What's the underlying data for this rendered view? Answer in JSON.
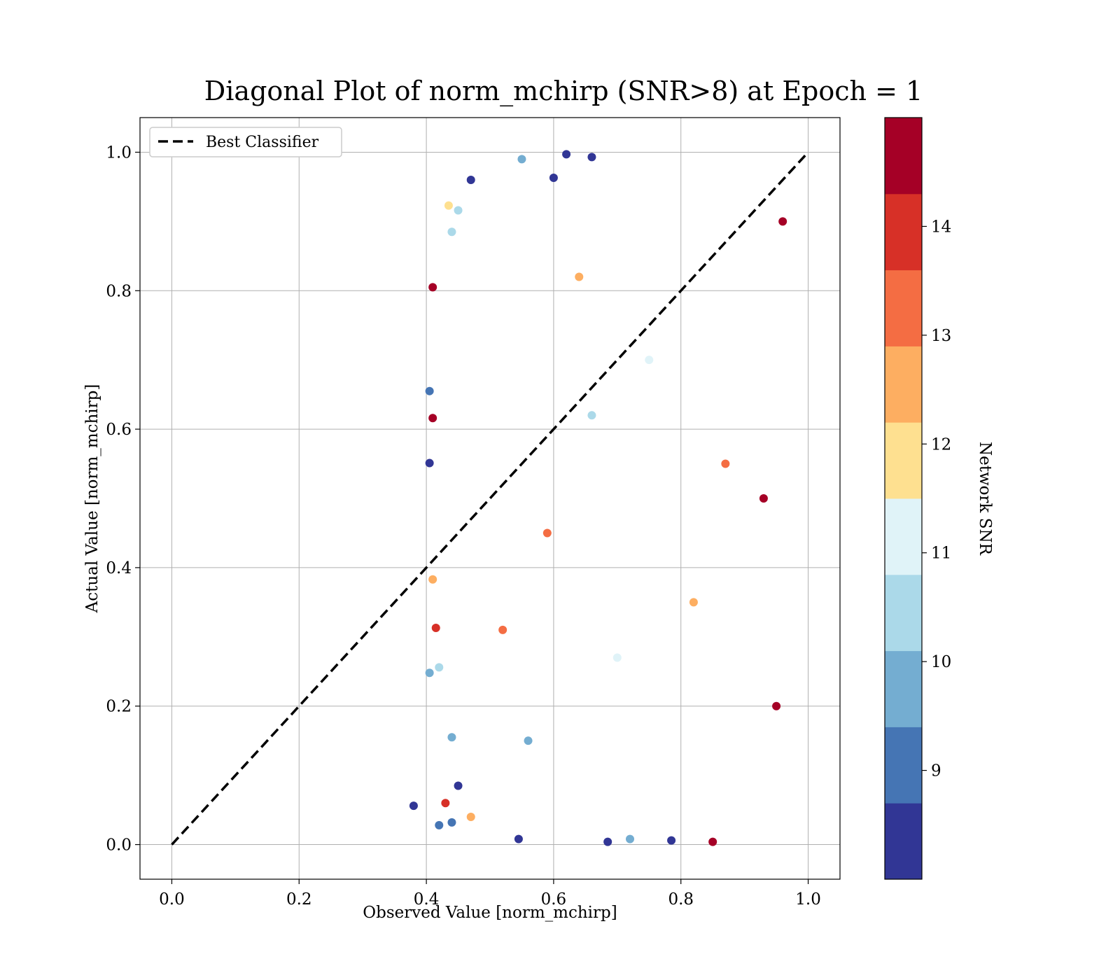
{
  "chart_data": {
    "type": "scatter",
    "title": "Diagonal Plot of norm_mchirp (SNR>8) at Epoch = 1",
    "xlabel": "Observed Value [norm_mchirp]",
    "ylabel": "Actual Value [norm_mchirp]",
    "xlim": [
      -0.05,
      1.05
    ],
    "ylim": [
      -0.05,
      1.05
    ],
    "xticks": [
      0.0,
      0.2,
      0.4,
      0.6,
      0.8,
      1.0
    ],
    "yticks": [
      0.0,
      0.2,
      0.4,
      0.6,
      0.8,
      1.0
    ],
    "xtick_labels": [
      "0.0",
      "0.2",
      "0.4",
      "0.6",
      "0.8",
      "1.0"
    ],
    "ytick_labels": [
      "0.0",
      "0.2",
      "0.4",
      "0.6",
      "0.8",
      "1.0"
    ],
    "grid": true,
    "legend": {
      "placement": "top-left",
      "entries": [
        "Best Classifier"
      ]
    },
    "reference_line": {
      "name": "Best Classifier",
      "x": [
        0.0,
        1.0
      ],
      "y": [
        0.0,
        1.0
      ],
      "style": "dashed",
      "color": "#000000"
    },
    "colorbar": {
      "label": "Network SNR",
      "range": [
        8.0,
        15.0
      ],
      "ticks": [
        9,
        10,
        11,
        12,
        13,
        14
      ],
      "tick_labels": [
        "9",
        "10",
        "11",
        "12",
        "13",
        "14"
      ],
      "colors": [
        "#313695",
        "#4575b4",
        "#74add1",
        "#abd9e9",
        "#e0f3f8",
        "#fee090",
        "#fdae61",
        "#f46d43",
        "#d73027",
        "#a50026"
      ]
    },
    "series": [
      {
        "color_by": "Network SNR",
        "points": [
          [
            0.38,
            0.056,
            8.2
          ],
          [
            0.405,
            0.655,
            9.1
          ],
          [
            0.405,
            0.551,
            8.3
          ],
          [
            0.41,
            0.805,
            14.6
          ],
          [
            0.41,
            0.616,
            14.3
          ],
          [
            0.42,
            0.028,
            9.2
          ],
          [
            0.43,
            0.06,
            13.8
          ],
          [
            0.435,
            0.923,
            12.2
          ],
          [
            0.44,
            0.885,
            10.6
          ],
          [
            0.44,
            0.032,
            9.0
          ],
          [
            0.45,
            0.916,
            10.6
          ],
          [
            0.41,
            0.383,
            12.4
          ],
          [
            0.415,
            0.313,
            14.2
          ],
          [
            0.405,
            0.248,
            9.8
          ],
          [
            0.42,
            0.256,
            10.7
          ],
          [
            0.55,
            0.99,
            10.1
          ],
          [
            0.62,
            0.997,
            8.5
          ],
          [
            0.66,
            0.993,
            8.4
          ],
          [
            0.6,
            0.963,
            8.2
          ],
          [
            0.47,
            0.96,
            8.6
          ],
          [
            0.545,
            0.008,
            8.7
          ],
          [
            0.685,
            0.004,
            8.3
          ],
          [
            0.72,
            0.008,
            9.4
          ],
          [
            0.785,
            0.006,
            8.3
          ],
          [
            0.85,
            0.004,
            14.6
          ],
          [
            0.47,
            0.04,
            12.4
          ],
          [
            0.44,
            0.155,
            9.4
          ],
          [
            0.45,
            0.085,
            8.6
          ],
          [
            0.64,
            0.82,
            12.5
          ],
          [
            0.59,
            0.45,
            13.6
          ],
          [
            0.75,
            0.7,
            10.9
          ],
          [
            0.82,
            0.35,
            12.6
          ],
          [
            0.87,
            0.55,
            13.4
          ],
          [
            0.93,
            0.5,
            14.8
          ],
          [
            0.95,
            0.2,
            14.9
          ],
          [
            0.96,
            0.9,
            14.8
          ],
          [
            0.52,
            0.31,
            13.2
          ],
          [
            0.56,
            0.15,
            9.5
          ],
          [
            0.66,
            0.62,
            10.4
          ],
          [
            0.7,
            0.27,
            11.3
          ]
        ]
      }
    ]
  }
}
